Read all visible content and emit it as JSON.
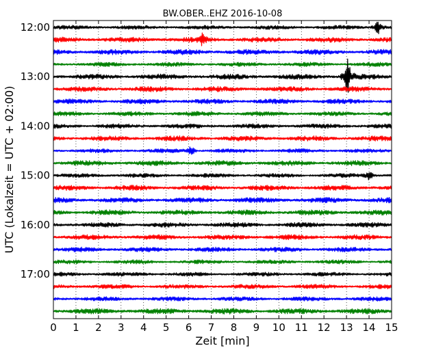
{
  "chart_data": {
    "type": "line",
    "title": "BW.OBER..EHZ 2016-10-08",
    "xlabel": "Zeit  [min]",
    "ylabel": "UTC (Lokalzeit = UTC + 02:00)",
    "xlim": [
      0,
      15
    ],
    "x_ticks": [
      0,
      1,
      2,
      3,
      4,
      5,
      6,
      7,
      8,
      9,
      10,
      11,
      12,
      13,
      14,
      15
    ],
    "y_ticks": [
      "12:00",
      "13:00",
      "14:00",
      "15:00",
      "16:00",
      "17:00"
    ],
    "grid": "vertical dotted at each minute",
    "trace_colors": [
      "#000000",
      "#ff0000",
      "#0000ff",
      "#008000"
    ],
    "traces_start": "12:00",
    "traces_interval_min": 15,
    "traces_count": 24,
    "events": [
      {
        "trace": 0,
        "minute": 14.4,
        "amp": 0.9
      },
      {
        "trace": 1,
        "minute": 6.6,
        "amp": 0.55
      },
      {
        "trace": 4,
        "minute": 13.05,
        "amp": 2.2
      },
      {
        "trace": 10,
        "minute": 6.1,
        "amp": 0.6
      },
      {
        "trace": 12,
        "minute": 14.0,
        "amp": 0.55
      }
    ]
  }
}
